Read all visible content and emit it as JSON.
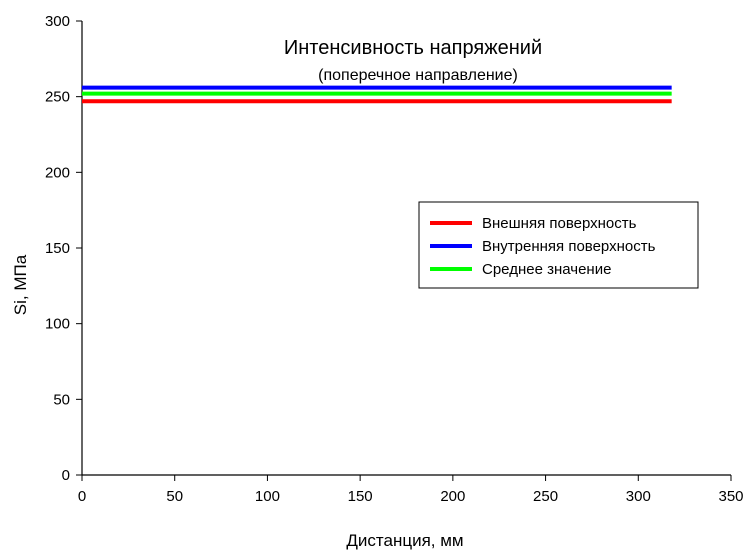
{
  "chart_data": {
    "type": "line",
    "title": "Интенсивность напряжений",
    "subtitle": "(поперечное направление)",
    "xlabel": "Дистанция, мм",
    "ylabel": "Si, МПа",
    "xlim": [
      0,
      350
    ],
    "ylim": [
      0,
      300
    ],
    "xticks": [
      0,
      50,
      100,
      150,
      200,
      250,
      300,
      350
    ],
    "yticks": [
      0,
      50,
      100,
      150,
      200,
      250,
      300
    ],
    "grid": false,
    "legend_position": "right",
    "series": [
      {
        "name": "Внешняя поверхность",
        "color": "#ff0000",
        "x": [
          0,
          318
        ],
        "y": [
          247,
          247
        ]
      },
      {
        "name": "Внутренняя поверхность",
        "color": "#0000ff",
        "x": [
          0,
          318
        ],
        "y": [
          256,
          256
        ]
      },
      {
        "name": "Среднее значение",
        "color": "#00ff00",
        "x": [
          0,
          318
        ],
        "y": [
          252,
          252
        ]
      }
    ]
  }
}
